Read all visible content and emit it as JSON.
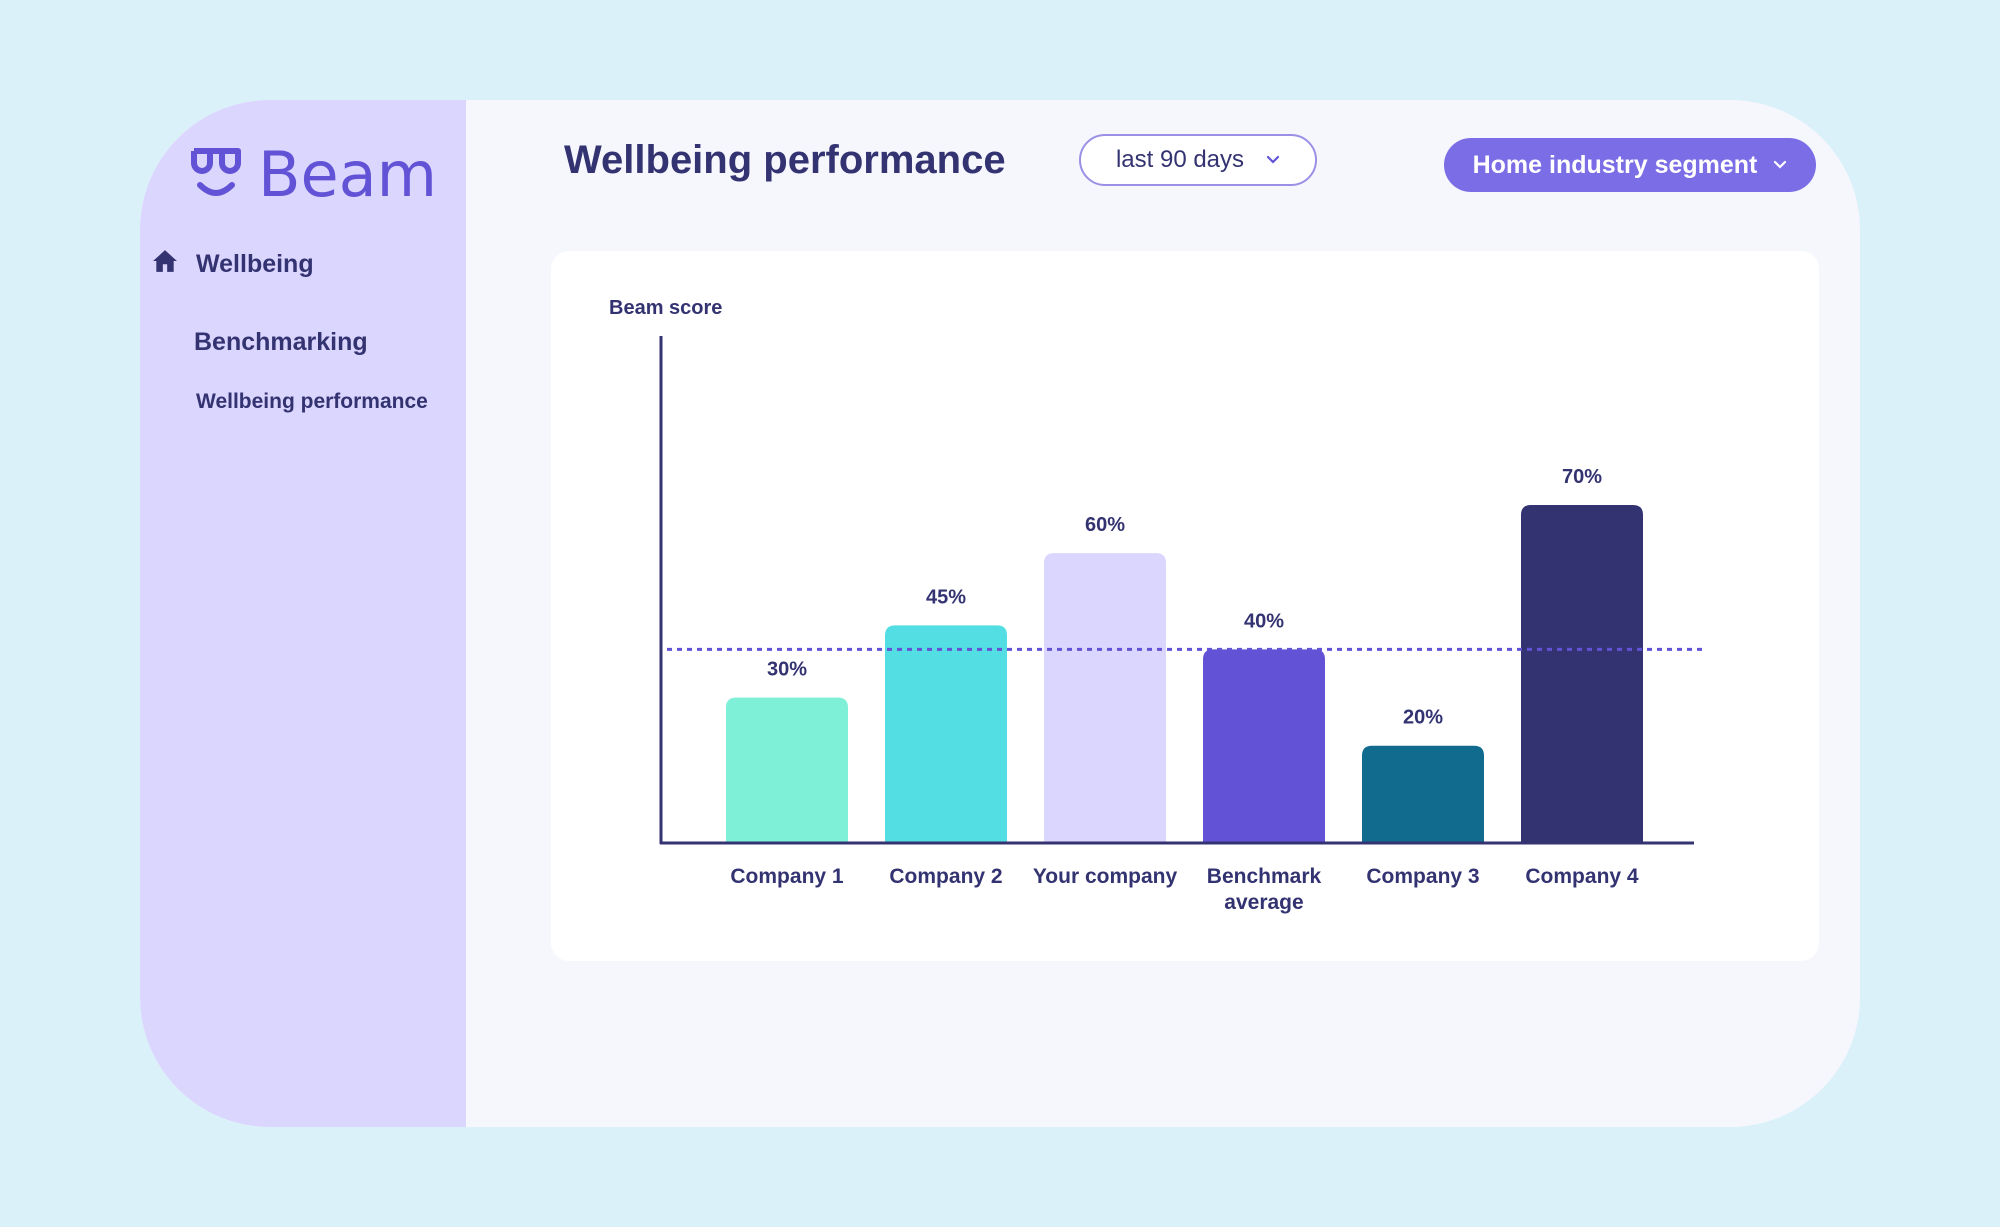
{
  "brand": {
    "name": "Beam",
    "logo_icon": "beam-smile-logo-icon",
    "accent": "#6253d6"
  },
  "sidebar": {
    "items": [
      {
        "label": "Wellbeing",
        "icon": "home-icon"
      },
      {
        "label": "Benchmarking"
      },
      {
        "label": "Wellbeing performance"
      }
    ]
  },
  "header": {
    "title": "Wellbeing performance",
    "period_select": {
      "value": "last 90 days",
      "icon": "chevron-down-icon"
    },
    "segment_select": {
      "value": "Home industry segment",
      "icon": "chevron-down-icon",
      "color": "#7b6de6"
    }
  },
  "chart_data": {
    "type": "bar",
    "title": "",
    "ylabel": "Beam score",
    "xlabel": "",
    "ylim": [
      0,
      80
    ],
    "grid": false,
    "categories": [
      "Company 1",
      "Company 2",
      "Your company",
      "Benchmark average",
      "Company 3",
      "Company 4"
    ],
    "category_lines": [
      [
        "Company 1"
      ],
      [
        "Company 2"
      ],
      [
        "Your company"
      ],
      [
        "Benchmark",
        "average"
      ],
      [
        "Company 3"
      ],
      [
        "Company 4"
      ]
    ],
    "values": [
      30,
      45,
      60,
      40,
      20,
      70
    ],
    "value_labels": [
      "30%",
      "45%",
      "60%",
      "40%",
      "20%",
      "70%"
    ],
    "colors": [
      "#7ef0d8",
      "#52dee2",
      "#dbd6fe",
      "#6253d6",
      "#116b8f",
      "#343372"
    ],
    "reference_line": {
      "label": "Benchmark average",
      "value": 40,
      "style": "dotted",
      "color": "#6253d6"
    }
  }
}
